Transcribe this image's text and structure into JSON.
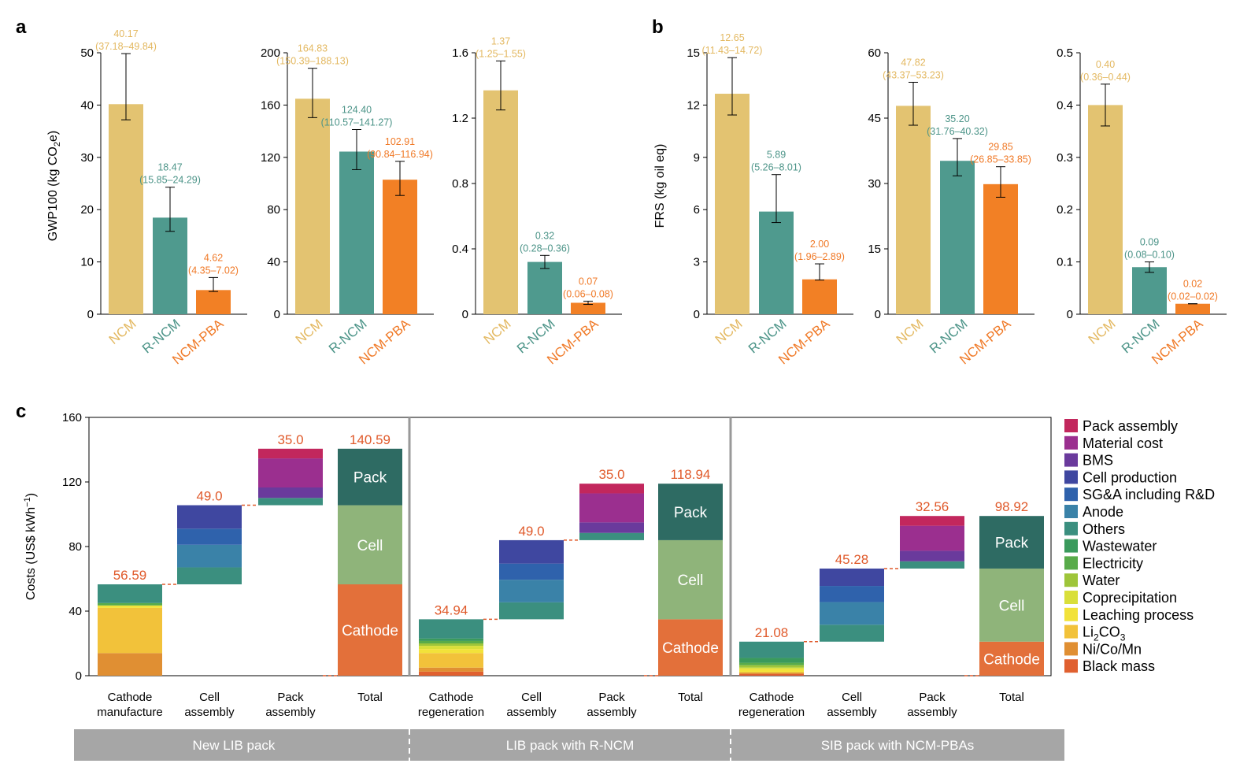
{
  "colors": {
    "NCM": "#e3c371",
    "R-NCM": "#4f9a8e",
    "NCM-PBA": "#f28025",
    "label_NCM": "#e3b860",
    "label_R-NCM": "#4c9488",
    "label_NCM-PBA": "#f07a28",
    "waterfall_label": "#e05a2b",
    "band": "#a6a6a6"
  },
  "panel_a": {
    "letter": "a",
    "ylabel_parts": [
      "GWP100 (kg CO",
      "2",
      "e)"
    ],
    "charts": [
      {
        "ticks": [
          "0",
          "10",
          "20",
          "30",
          "40",
          "50"
        ],
        "ylim": [
          0,
          50
        ]
      },
      {
        "ticks": [
          "0",
          "40",
          "80",
          "120",
          "160",
          "200"
        ],
        "ylim": [
          0,
          200
        ]
      },
      {
        "ticks": [
          "0",
          "0.4",
          "0.8",
          "1.2",
          "1.6"
        ],
        "ylim": [
          0,
          1.6
        ]
      }
    ]
  },
  "panel_b": {
    "letter": "b",
    "ylabel": "FRS (kg oil eq)",
    "charts": [
      {
        "ticks": [
          "0",
          "3",
          "6",
          "9",
          "12",
          "15"
        ],
        "ylim": [
          0,
          15
        ]
      },
      {
        "ticks": [
          "0",
          "15",
          "30",
          "45",
          "60"
        ],
        "ylim": [
          0,
          60
        ]
      },
      {
        "ticks": [
          "0",
          "0.1",
          "0.2",
          "0.3",
          "0.4",
          "0.5"
        ],
        "ylim": [
          0,
          0.5
        ]
      }
    ]
  },
  "panel_c": {
    "letter": "c",
    "ylabel": "Costs (US$ kWh",
    "ylabel_sup": "−1",
    "ylabel_end": ")",
    "ticks": [
      "0",
      "40",
      "80",
      "120",
      "160"
    ],
    "groups": [
      "New LIB pack",
      "LIB pack with R-NCM",
      "SIB pack with NCM-PBAs"
    ],
    "cat_labels": [
      [
        "Cathode",
        "manufacture"
      ],
      [
        "Cell",
        "assembly"
      ],
      [
        "Pack",
        "assembly"
      ],
      [
        "Total"
      ],
      [
        "Cathode",
        "regeneration"
      ],
      [
        "Cell",
        "assembly"
      ],
      [
        "Pack",
        "assembly"
      ],
      [
        "Total"
      ],
      [
        "Cathode",
        "regeneration"
      ],
      [
        "Cell",
        "assembly"
      ],
      [
        "Pack",
        "assembly"
      ],
      [
        "Total"
      ]
    ],
    "total_inner_labels": [
      "Pack",
      "Cell",
      "Cathode"
    ],
    "legend": [
      {
        "label": "Pack assembly",
        "color": "#c2275d"
      },
      {
        "label": "Material cost",
        "color": "#9b2f8f"
      },
      {
        "label": "BMS",
        "color": "#6a3a9c"
      },
      {
        "label": "Cell production",
        "color": "#3f47a0"
      },
      {
        "label": "SG&A including R&D",
        "color": "#2f62ac"
      },
      {
        "label": "Anode",
        "color": "#3a82a8"
      },
      {
        "label": "Others",
        "color": "#3b8f7f"
      },
      {
        "label": "Wastewater",
        "color": "#3a9a5c"
      },
      {
        "label": "Electricity",
        "color": "#58ab4a"
      },
      {
        "label": "Water",
        "color": "#9ec53a"
      },
      {
        "label": "Coprecipitation",
        "color": "#d9df3a"
      },
      {
        "label": "Leaching process",
        "color": "#f2e23a"
      },
      {
        "label": "Li2CO3",
        "label_parts": [
          "Li",
          "2",
          "CO",
          "3"
        ],
        "color": "#f2c23a"
      },
      {
        "label": "Ni/Co/Mn",
        "color": "#e08f33"
      },
      {
        "label": "Black mass",
        "color": "#e06030"
      }
    ],
    "total_colors": {
      "Pack": "#2e6b63",
      "Cell": "#8fb47a",
      "Cathode": "#e3703a"
    }
  },
  "chart_data": [
    {
      "type": "bar",
      "panel": "a",
      "ylabel": "GWP100 (kg CO2e)",
      "categories": [
        "NCM",
        "R-NCM",
        "NCM-PBA"
      ],
      "ylim": [
        0,
        50
      ],
      "values": [
        40.17,
        18.47,
        4.62
      ],
      "err_low": [
        37.18,
        15.85,
        4.35
      ],
      "err_high": [
        49.84,
        24.29,
        7.02
      ],
      "value_labels": [
        "40.17",
        "18.47",
        "4.62"
      ],
      "range_labels": [
        "(37.18–49.84)",
        "(15.85–24.29)",
        "(4.35–7.02)"
      ]
    },
    {
      "type": "bar",
      "panel": "a",
      "categories": [
        "NCM",
        "R-NCM",
        "NCM-PBA"
      ],
      "ylim": [
        0,
        200
      ],
      "values": [
        164.83,
        124.4,
        102.91
      ],
      "err_low": [
        150.39,
        110.57,
        90.84
      ],
      "err_high": [
        188.13,
        141.27,
        116.94
      ],
      "value_labels": [
        "164.83",
        "124.40",
        "102.91"
      ],
      "range_labels": [
        "(150.39–188.13)",
        "(110.57–141.27)",
        "(90.84–116.94)"
      ]
    },
    {
      "type": "bar",
      "panel": "a",
      "categories": [
        "NCM",
        "R-NCM",
        "NCM-PBA"
      ],
      "ylim": [
        0,
        1.6
      ],
      "values": [
        1.37,
        0.32,
        0.07
      ],
      "err_low": [
        1.25,
        0.28,
        0.06
      ],
      "err_high": [
        1.55,
        0.36,
        0.08
      ],
      "value_labels": [
        "1.37",
        "0.32",
        "0.07"
      ],
      "range_labels": [
        "(1.25–1.55)",
        "(0.28–0.36)",
        "(0.06–0.08)"
      ]
    },
    {
      "type": "bar",
      "panel": "b",
      "ylabel": "FRS (kg oil eq)",
      "categories": [
        "NCM",
        "R-NCM",
        "NCM-PBA"
      ],
      "ylim": [
        0,
        15
      ],
      "values": [
        12.65,
        5.89,
        2.0
      ],
      "err_low": [
        11.43,
        5.26,
        1.96
      ],
      "err_high": [
        14.72,
        8.01,
        2.89
      ],
      "value_labels": [
        "12.65",
        "5.89",
        "2.00"
      ],
      "range_labels": [
        "(11.43–14.72)",
        "(5.26–8.01)",
        "(1.96–2.89)"
      ]
    },
    {
      "type": "bar",
      "panel": "b",
      "categories": [
        "NCM",
        "R-NCM",
        "NCM-PBA"
      ],
      "ylim": [
        0,
        60
      ],
      "values": [
        47.82,
        35.2,
        29.85
      ],
      "err_low": [
        43.37,
        31.76,
        26.85
      ],
      "err_high": [
        53.23,
        40.32,
        33.85
      ],
      "value_labels": [
        "47.82",
        "35.20",
        "29.85"
      ],
      "range_labels": [
        "(43.37–53.23)",
        "(31.76–40.32)",
        "(26.85–33.85)"
      ]
    },
    {
      "type": "bar",
      "panel": "b",
      "categories": [
        "NCM",
        "R-NCM",
        "NCM-PBA"
      ],
      "ylim": [
        0,
        0.5
      ],
      "values": [
        0.4,
        0.09,
        0.02
      ],
      "err_low": [
        0.36,
        0.08,
        0.02
      ],
      "err_high": [
        0.44,
        0.1,
        0.02
      ],
      "value_labels": [
        "0.40",
        "0.09",
        "0.02"
      ],
      "range_labels": [
        "(0.36–0.44)",
        "(0.08–0.10)",
        "(0.02–0.02)"
      ]
    },
    {
      "type": "bar",
      "subtype": "waterfall-stacked",
      "panel": "c",
      "ylabel": "Costs (US$ kWh−1)",
      "ylim": [
        0,
        160
      ],
      "groups": [
        {
          "name": "New LIB pack",
          "steps": [
            {
              "category": "Cathode manufacture",
              "base": 0,
              "top": 56.59,
              "label": "56.59",
              "segments": [
                [
                  "Ni/Co/Mn",
                  14
                ],
                [
                  "Li2CO3",
                  28
                ],
                [
                  "Leaching process",
                  1.5
                ],
                [
                  "Electricity",
                  1.5
                ],
                [
                  "Others",
                  11.59
                ]
              ]
            },
            {
              "category": "Cell assembly",
              "base": 56.59,
              "top": 105.59,
              "label": "49.0",
              "segments": [
                [
                  "Others",
                  10.5
                ],
                [
                  "Anode",
                  14
                ],
                [
                  "SG&A including R&D",
                  10
                ],
                [
                  "Cell production",
                  14.5
                ]
              ]
            },
            {
              "category": "Pack assembly",
              "base": 105.59,
              "top": 140.59,
              "label": "35.0",
              "segments": [
                [
                  "Others",
                  4.5
                ],
                [
                  "BMS",
                  6.5
                ],
                [
                  "Material cost",
                  18
                ],
                [
                  "Pack assembly",
                  6
                ]
              ]
            },
            {
              "category": "Total",
              "total": 140.59,
              "label": "140.59",
              "segments": [
                [
                  "Cathode",
                  56.59
                ],
                [
                  "Cell",
                  49.0
                ],
                [
                  "Pack",
                  35.0
                ]
              ]
            }
          ]
        },
        {
          "name": "LIB pack with R-NCM",
          "steps": [
            {
              "category": "Cathode regeneration",
              "base": 0,
              "top": 34.94,
              "label": "34.94",
              "segments": [
                [
                  "Black mass",
                  2.5
                ],
                [
                  "Ni/Co/Mn",
                  2.5
                ],
                [
                  "Li2CO3",
                  9
                ],
                [
                  "Leaching process",
                  2.5
                ],
                [
                  "Coprecipitation",
                  2
                ],
                [
                  "Water",
                  1.5
                ],
                [
                  "Electricity",
                  1.5
                ],
                [
                  "Wastewater",
                  1.5
                ],
                [
                  "Others",
                  11.94
                ]
              ]
            },
            {
              "category": "Cell assembly",
              "base": 34.94,
              "top": 83.94,
              "label": "49.0",
              "segments": [
                [
                  "Others",
                  10.5
                ],
                [
                  "Anode",
                  14
                ],
                [
                  "SG&A including R&D",
                  10
                ],
                [
                  "Cell production",
                  14.5
                ]
              ]
            },
            {
              "category": "Pack assembly",
              "base": 83.94,
              "top": 118.94,
              "label": "35.0",
              "segments": [
                [
                  "Others",
                  4.5
                ],
                [
                  "BMS",
                  6.5
                ],
                [
                  "Material cost",
                  18
                ],
                [
                  "Pack assembly",
                  6
                ]
              ]
            },
            {
              "category": "Total",
              "total": 118.94,
              "label": "118.94",
              "segments": [
                [
                  "Cathode",
                  34.94
                ],
                [
                  "Cell",
                  49.0
                ],
                [
                  "Pack",
                  35.0
                ]
              ]
            }
          ]
        },
        {
          "name": "SIB pack with NCM-PBAs",
          "steps": [
            {
              "category": "Cathode regeneration",
              "base": 0,
              "top": 21.08,
              "label": "21.08",
              "segments": [
                [
                  "Black mass",
                  1
                ],
                [
                  "Ni/Co/Mn",
                  1
                ],
                [
                  "Leaching process",
                  2
                ],
                [
                  "Coprecipitation",
                  1
                ],
                [
                  "Water",
                  1.5
                ],
                [
                  "Electricity",
                  1.5
                ],
                [
                  "Wastewater",
                  3
                ],
                [
                  "Others",
                  10.08
                ]
              ]
            },
            {
              "category": "Cell assembly",
              "base": 21.08,
              "top": 66.36,
              "label": "45.28",
              "segments": [
                [
                  "Others",
                  10.5
                ],
                [
                  "Anode",
                  14
                ],
                [
                  "SG&A including R&D",
                  10
                ],
                [
                  "Cell production",
                  10.78
                ]
              ]
            },
            {
              "category": "Pack assembly",
              "base": 66.36,
              "top": 98.92,
              "label": "32.56",
              "segments": [
                [
                  "Others",
                  4.5
                ],
                [
                  "BMS",
                  6.5
                ],
                [
                  "Material cost",
                  15.5
                ],
                [
                  "Pack assembly",
                  6.06
                ]
              ]
            },
            {
              "category": "Total",
              "total": 98.92,
              "label": "98.92",
              "segments": [
                [
                  "Cathode",
                  21.08
                ],
                [
                  "Cell",
                  45.28
                ],
                [
                  "Pack",
                  32.56
                ]
              ]
            }
          ]
        }
      ]
    }
  ]
}
